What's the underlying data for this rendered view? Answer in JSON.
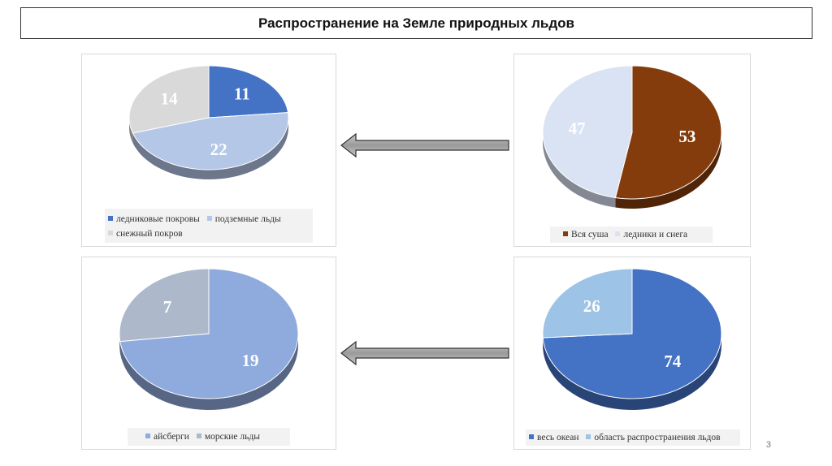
{
  "title": "Распространение на Земле природных льдов",
  "page_number": "3",
  "chart_data": [
    {
      "id": "c1",
      "type": "pie",
      "title": "",
      "series": [
        {
          "name": "ледниковые покровы",
          "value": 11,
          "color": "#4472c4"
        },
        {
          "name": "подземные льды",
          "value": 22,
          "color": "#b4c7e7"
        },
        {
          "name": "снежный покров",
          "value": 14,
          "color": "#d9d9d9"
        }
      ],
      "legend_position": "bottom"
    },
    {
      "id": "c2",
      "type": "pie",
      "title": "",
      "series": [
        {
          "name": "Вся суша",
          "value": 53,
          "color": "#843c0c"
        },
        {
          "name": "ледники и снега",
          "value": 47,
          "color": "#dae3f3"
        }
      ],
      "legend_position": "bottom"
    },
    {
      "id": "c3",
      "type": "pie",
      "title": "",
      "series": [
        {
          "name": "айсберги",
          "value": 19,
          "color": "#8faadc"
        },
        {
          "name": "морские льды",
          "value": 7,
          "color": "#adb9ca"
        }
      ],
      "legend_position": "bottom"
    },
    {
      "id": "c4",
      "type": "pie",
      "title": "",
      "series": [
        {
          "name": "весь океан",
          "value": 74,
          "color": "#4472c4"
        },
        {
          "name": "область распространения льдов",
          "value": 26,
          "color": "#9dc3e6"
        }
      ],
      "legend_position": "bottom"
    }
  ]
}
